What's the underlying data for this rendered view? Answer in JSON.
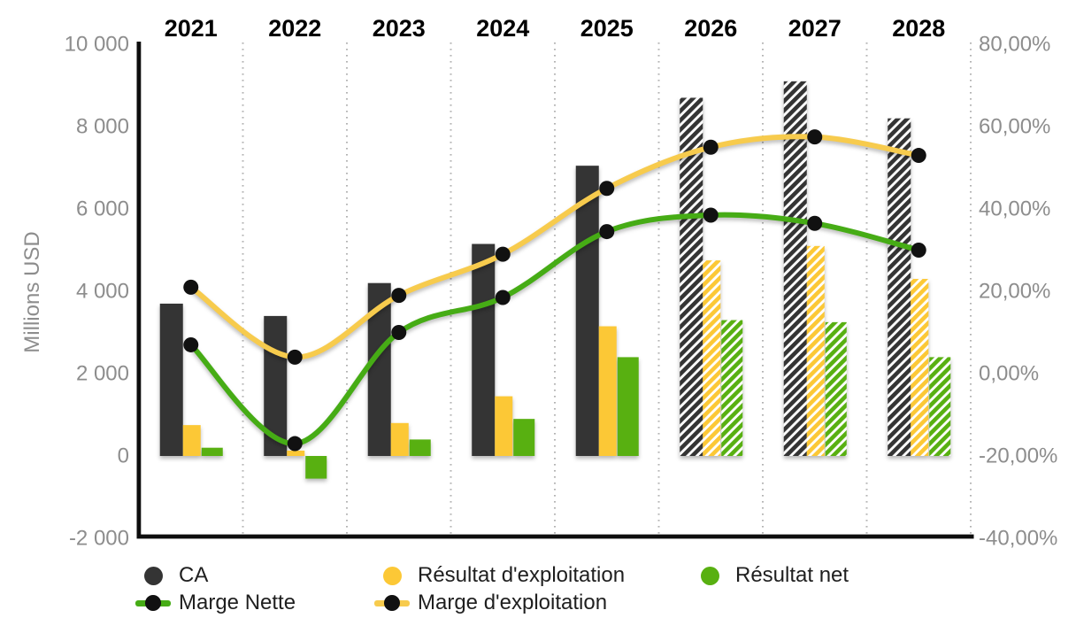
{
  "chart_data": {
    "type": "bar",
    "subtype": "combo-bar-line-dual-axis",
    "title": "",
    "categories": [
      "2021",
      "2022",
      "2023",
      "2024",
      "2025",
      "2026",
      "2027",
      "2028"
    ],
    "forecast_categories": [
      "2026",
      "2027",
      "2028"
    ],
    "bar_series": [
      {
        "name": "CA",
        "color": "#343434",
        "unit": "Millions USD",
        "values": [
          3700,
          3400,
          4200,
          5150,
          7050,
          8700,
          9100,
          8200
        ]
      },
      {
        "name": "Résultat d'exploitation",
        "color": "#fcc836",
        "unit": "Millions USD",
        "values": [
          750,
          130,
          800,
          1450,
          3150,
          4750,
          5100,
          4300
        ]
      },
      {
        "name": "Résultat net",
        "color": "#58b011",
        "unit": "Millions USD",
        "values": [
          200,
          -550,
          400,
          900,
          2400,
          3300,
          3250,
          2400
        ]
      }
    ],
    "line_series": [
      {
        "name": "Marge d'exploitation",
        "color": "#f7cb4d",
        "axis": "right",
        "unit": "%",
        "values_pct": [
          21,
          4,
          19,
          29,
          45,
          55,
          57.5,
          53
        ]
      },
      {
        "name": "Marge Nette",
        "color": "#46ac15",
        "axis": "right",
        "unit": "%",
        "values_pct": [
          7,
          -17,
          10,
          18.5,
          34.5,
          38.5,
          36.5,
          30
        ]
      }
    ],
    "marker_color": "#111111",
    "left_axis": {
      "label": "Millions USD",
      "ticks": [
        "10 000",
        "8 000",
        "6 000",
        "4 000",
        "2 000",
        "0",
        "-2 000"
      ],
      "values": [
        10000,
        8000,
        6000,
        4000,
        2000,
        0,
        -2000
      ],
      "range": [
        -2000,
        10000
      ]
    },
    "right_axis": {
      "ticks": [
        "80,00%",
        "60,00%",
        "40,00%",
        "20,00%",
        "0,00%",
        "-20,00%",
        "-40,00%"
      ],
      "values": [
        80,
        60,
        40,
        20,
        0,
        -20,
        -40
      ],
      "range": [
        -40,
        80
      ]
    },
    "grid": "vertical dotted separators between year columns",
    "tick_color": "#8d8d8d",
    "axis_color": "#0d0d0d",
    "grid_color": "#b3b3b3",
    "year_label_color": "#000000"
  },
  "legend": {
    "rows": [
      [
        {
          "label": "CA",
          "marker": "dot",
          "color": "#343434"
        },
        {
          "label": "Résultat d'exploitation",
          "marker": "dot",
          "color": "#fcc836"
        },
        {
          "label": "Résultat net",
          "marker": "dot",
          "color": "#58b011"
        }
      ],
      [
        {
          "label": "Marge Nette",
          "marker": "line-dot",
          "color": "#46ac15"
        },
        {
          "label": "Marge d'exploitation",
          "marker": "line-dot",
          "color": "#f7cb4d"
        }
      ]
    ]
  }
}
